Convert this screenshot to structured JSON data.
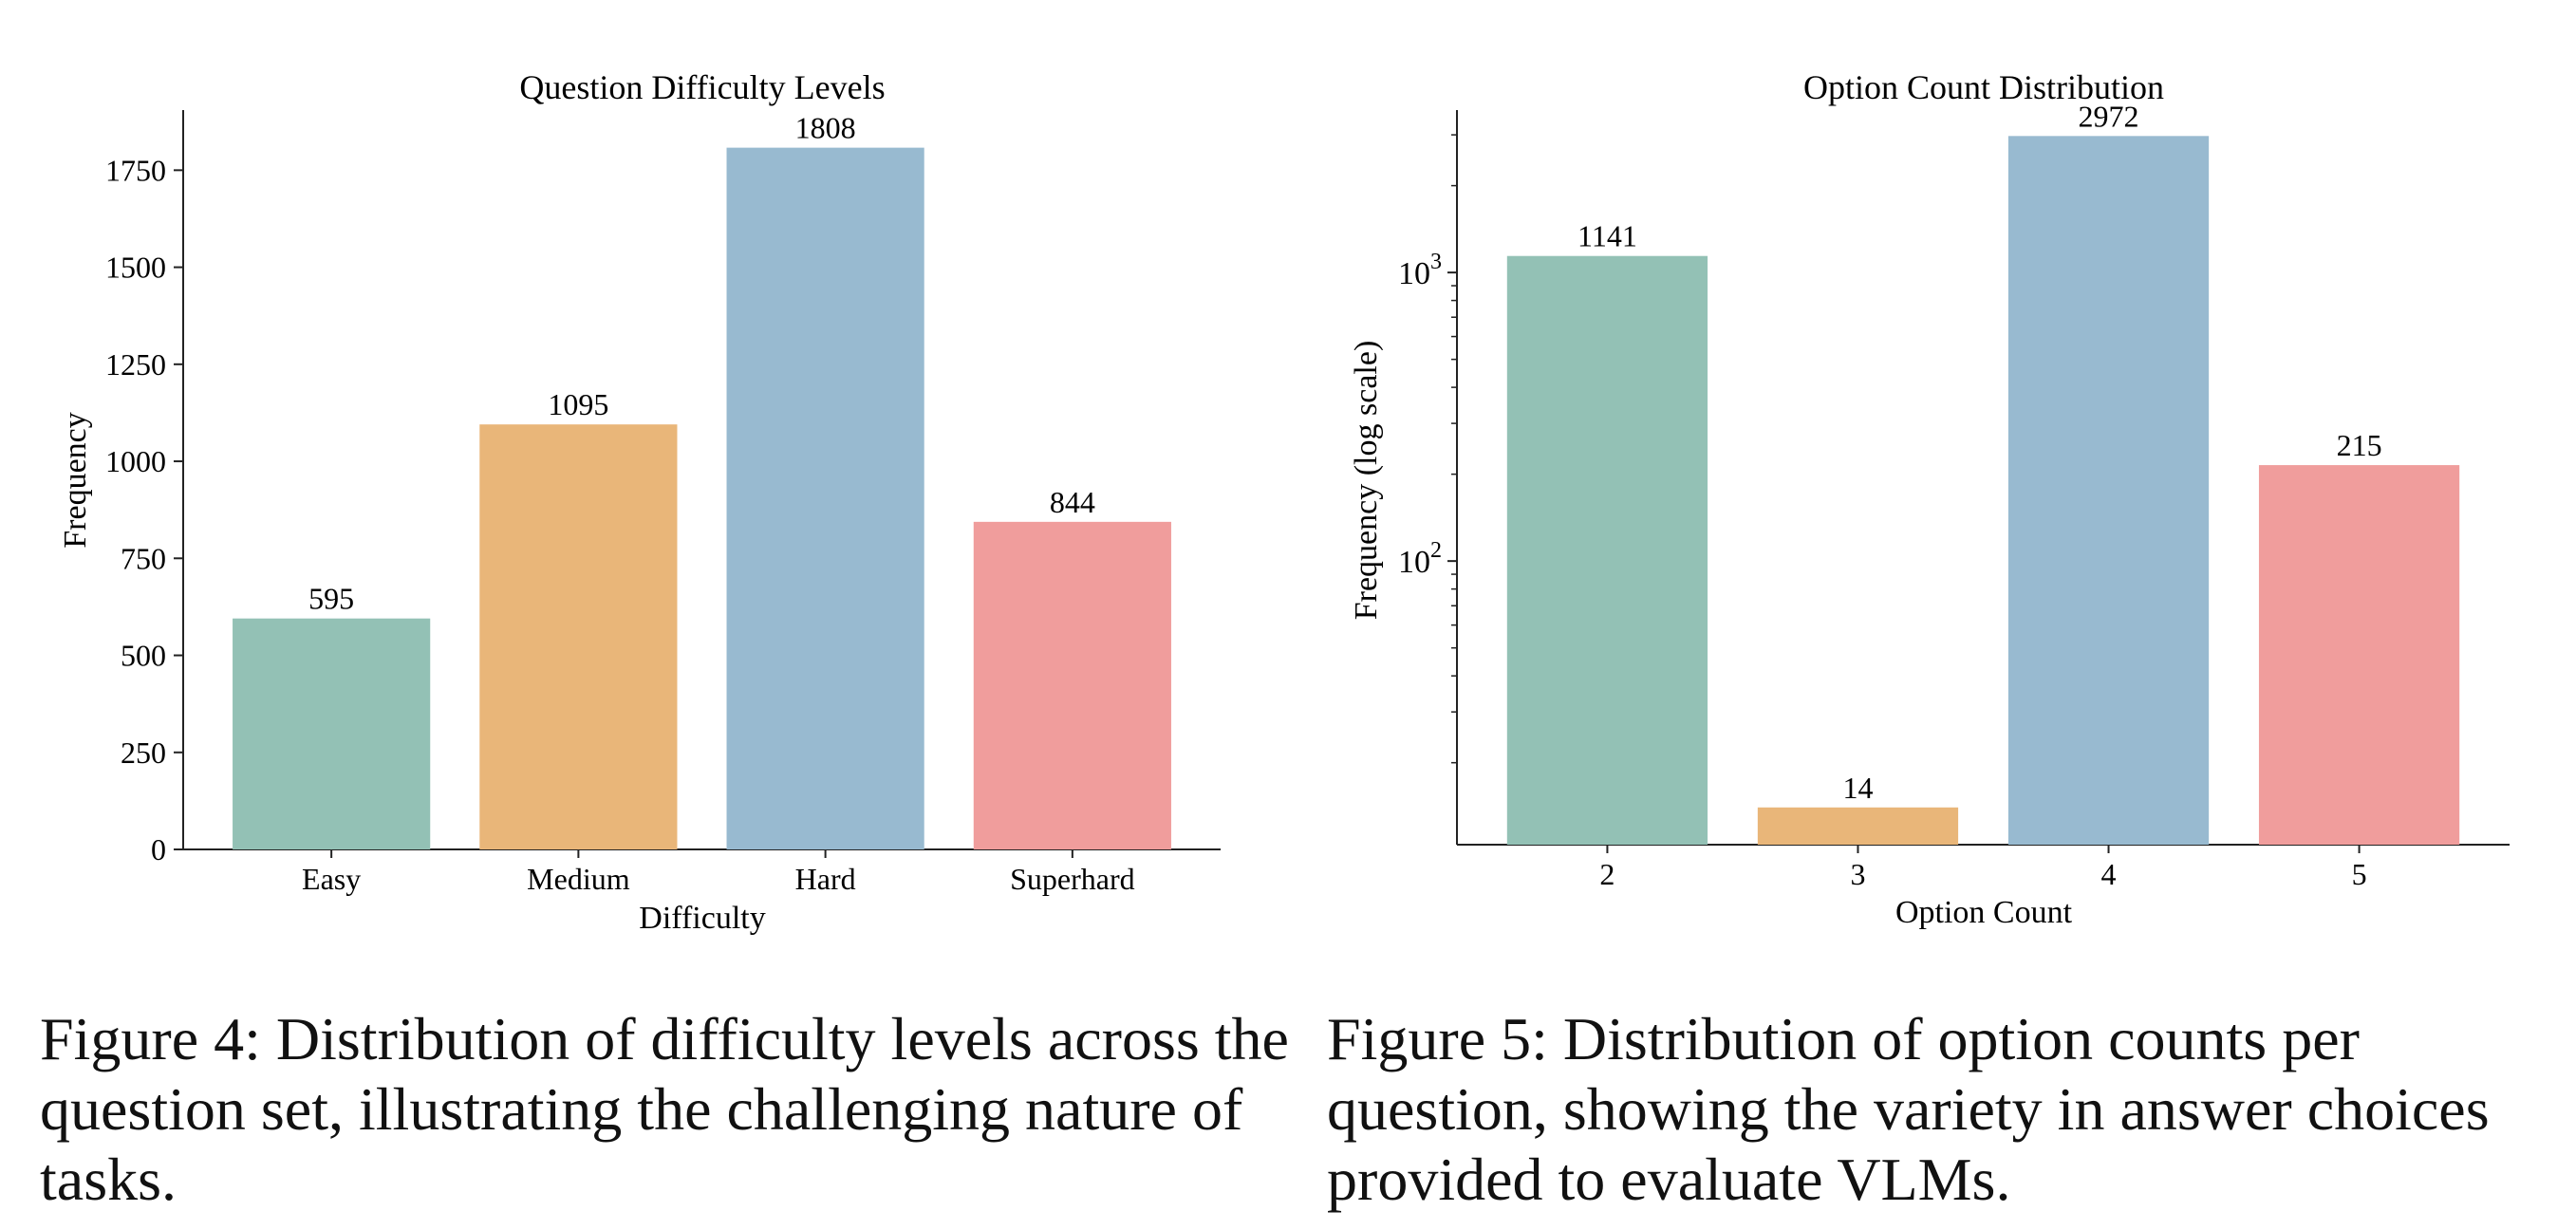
{
  "charts": [
    {
      "title": "Question Difficulty Levels",
      "xlabel": "Difficulty",
      "ylabel": "Frequency"
    },
    {
      "title": "Option Count Distribution",
      "xlabel": "Option Count",
      "ylabel": "Frequency (log scale)"
    }
  ],
  "chart_data": [
    {
      "type": "bar",
      "title": "Question Difficulty Levels",
      "xlabel": "Difficulty",
      "ylabel": "Frequency",
      "categories": [
        "Easy",
        "Medium",
        "Hard",
        "Superhard"
      ],
      "values": [
        595,
        1095,
        1808,
        844
      ],
      "data_labels": [
        "595",
        "1095",
        "1808",
        "844"
      ],
      "ylim": [
        0,
        1900
      ],
      "yticks": [
        0,
        250,
        500,
        750,
        1000,
        1250,
        1500,
        1750
      ],
      "colors": [
        "#93c1b5",
        "#e9b679",
        "#98bad0",
        "#f09d9c"
      ],
      "grid": false
    },
    {
      "type": "bar",
      "title": "Option Count Distribution",
      "xlabel": "Option Count",
      "ylabel": "Frequency (log scale)",
      "yscale": "log",
      "categories": [
        "2",
        "3",
        "4",
        "5"
      ],
      "values": [
        1141,
        14,
        2972,
        215
      ],
      "data_labels": [
        "1141",
        "14",
        "2972",
        "215"
      ],
      "ylim": [
        10.4,
        3600
      ],
      "yticks": [
        100,
        1000
      ],
      "ytick_labels": [
        {
          "base": "10",
          "exp": "2"
        },
        {
          "base": "10",
          "exp": "3"
        }
      ],
      "colors": [
        "#93c1b5",
        "#e9b679",
        "#98bad0",
        "#f09d9c"
      ],
      "grid": false
    }
  ],
  "captions": {
    "left": "Figure 4: Distribution of difficulty levels across the question set, illustrating the challenging nature of tasks.",
    "right": "Figure 5: Distribution of option counts per question, showing the variety in answer choices provided to evaluate VLMs."
  }
}
